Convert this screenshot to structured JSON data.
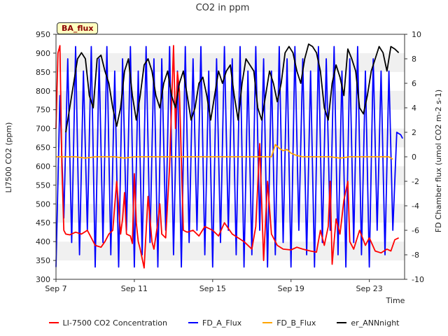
{
  "chart_data": {
    "type": "line",
    "title": "CO2 in ppm",
    "badge": "BA_flux",
    "xlabel": "Time",
    "ylabel_left": "LI7500 CO2 (ppm)",
    "ylabel_right": "FD Chamber flux (umol CO2 m-2 s-1)",
    "x_range": [
      0,
      17.8
    ],
    "x_unit": "days since Sep 7",
    "x_ticks": [
      {
        "day": 0,
        "label": "Sep 7"
      },
      {
        "day": 4,
        "label": "Sep 11"
      },
      {
        "day": 8,
        "label": "Sep 15"
      },
      {
        "day": 12,
        "label": "Sep 19"
      },
      {
        "day": 16,
        "label": "Sep 23"
      }
    ],
    "ylim_left": [
      300,
      950
    ],
    "yticks_left": [
      300,
      350,
      400,
      450,
      500,
      550,
      600,
      650,
      700,
      750,
      800,
      850,
      900,
      950
    ],
    "ylim_right": [
      -10,
      10
    ],
    "yticks_right": [
      -10,
      -8,
      -6,
      -4,
      -2,
      0,
      2,
      4,
      6,
      8,
      10
    ],
    "grid_bands": true,
    "legend_position": "bottom",
    "series": [
      {
        "name": "LI-7500 CO2 Concentration",
        "color": "#ff0000",
        "axis": "left",
        "x": [
          0.0,
          0.1,
          0.2,
          0.3,
          0.4,
          0.5,
          0.7,
          1.0,
          1.3,
          1.6,
          2.0,
          2.3,
          2.5,
          2.7,
          2.9,
          3.1,
          3.3,
          3.4,
          3.5,
          3.6,
          3.8,
          3.9,
          4.0,
          4.1,
          4.2,
          4.3,
          4.5,
          4.7,
          4.9,
          5.0,
          5.2,
          5.3,
          5.4,
          5.6,
          5.8,
          6.0,
          6.1,
          6.2,
          6.3,
          6.5,
          6.7,
          7.0,
          7.3,
          7.6,
          8.0,
          8.3,
          8.6,
          9.0,
          9.3,
          9.6,
          10.0,
          10.2,
          10.4,
          10.6,
          10.8,
          11.0,
          11.3,
          11.6,
          12.0,
          12.3,
          12.6,
          13.0,
          13.3,
          13.5,
          13.7,
          13.9,
          14.0,
          14.1,
          14.3,
          14.5,
          14.7,
          14.9,
          15.0,
          15.2,
          15.5,
          15.8,
          16.0,
          16.3,
          16.6,
          16.9,
          17.1,
          17.3,
          17.5
        ],
        "values": [
          700,
          900,
          920,
          600,
          430,
          420,
          418,
          425,
          420,
          430,
          390,
          385,
          400,
          420,
          430,
          560,
          420,
          460,
          530,
          420,
          415,
          395,
          580,
          450,
          400,
          380,
          330,
          520,
          400,
          380,
          450,
          500,
          420,
          410,
          600,
          920,
          700,
          850,
          800,
          430,
          425,
          430,
          415,
          440,
          430,
          415,
          450,
          420,
          410,
          400,
          380,
          440,
          660,
          350,
          560,
          420,
          390,
          380,
          378,
          385,
          380,
          375,
          372,
          430,
          390,
          440,
          560,
          340,
          460,
          420,
          510,
          560,
          400,
          380,
          430,
          390,
          410,
          375,
          370,
          380,
          375,
          405,
          410
        ]
      },
      {
        "name": "FD_A_Flux",
        "color": "#0000ff",
        "axis": "right",
        "x": [
          0.0,
          0.2,
          0.4,
          0.6,
          0.8,
          1.0,
          1.2,
          1.4,
          1.6,
          1.8,
          2.0,
          2.2,
          2.4,
          2.6,
          2.8,
          3.0,
          3.2,
          3.4,
          3.6,
          3.8,
          4.0,
          4.2,
          4.4,
          4.6,
          4.8,
          5.0,
          5.2,
          5.4,
          5.6,
          5.8,
          6.0,
          6.2,
          6.4,
          6.6,
          6.8,
          7.0,
          7.2,
          7.4,
          7.6,
          7.8,
          8.0,
          8.2,
          8.4,
          8.6,
          8.8,
          9.0,
          9.2,
          9.4,
          9.6,
          9.8,
          10.0,
          10.2,
          10.4,
          10.6,
          10.8,
          11.0,
          11.2,
          11.4,
          11.6,
          11.8,
          12.0,
          12.2,
          12.4,
          12.6,
          12.8,
          13.0,
          13.2,
          13.4,
          13.6,
          13.8,
          14.0,
          14.2,
          14.4,
          14.6,
          14.8,
          15.0,
          15.2,
          15.4,
          15.6,
          15.8,
          16.0,
          16.2,
          16.4,
          16.6,
          16.8,
          17.0,
          17.2,
          17.4,
          17.6,
          17.7
        ],
        "values": [
          -9,
          5,
          -5,
          8,
          -7,
          9,
          -8,
          7,
          -6,
          9,
          -9,
          8,
          -7,
          9,
          -8,
          7,
          -9,
          8,
          -6,
          9,
          -9,
          7,
          -8,
          9,
          -7,
          8,
          -9,
          8,
          -6,
          9,
          -8,
          7,
          -9,
          9,
          -7,
          8,
          -6,
          9,
          -8,
          7,
          -9,
          8,
          -7,
          9,
          -6,
          8,
          -8,
          9,
          -9,
          7,
          -8,
          9,
          -6,
          8,
          -9,
          7,
          -8,
          9,
          -7,
          8,
          -9,
          9,
          -6,
          8,
          -8,
          7,
          -9,
          9,
          -7,
          8,
          -6,
          9,
          -8,
          7,
          -9,
          8,
          -7,
          9,
          -8,
          7,
          -9,
          8,
          -6,
          7,
          -8,
          7,
          -6,
          2,
          1.8,
          1.5
        ]
      },
      {
        "name": "FD_B_Flux",
        "color": "#ffa500",
        "axis": "right",
        "x": [
          0.0,
          0.5,
          1.0,
          1.5,
          2.0,
          2.5,
          3.0,
          3.5,
          4.0,
          4.5,
          5.0,
          5.5,
          6.0,
          6.5,
          7.0,
          7.5,
          8.0,
          8.5,
          9.0,
          9.5,
          10.0,
          10.5,
          11.0,
          11.2,
          11.4,
          11.6,
          11.8,
          12.0,
          12.3,
          12.6,
          13.0,
          13.5,
          14.0,
          14.5,
          15.0,
          15.5,
          16.0,
          16.5,
          17.0,
          17.2
        ],
        "values": [
          0.0,
          0.0,
          0.0,
          -0.1,
          0.0,
          0.0,
          0.0,
          -0.1,
          0.0,
          0.0,
          0.0,
          0.0,
          0.0,
          0.0,
          0.0,
          0.0,
          0.0,
          0.0,
          0.0,
          0.0,
          0.0,
          0.0,
          0.0,
          1.0,
          0.7,
          0.5,
          0.6,
          0.3,
          0.1,
          0.0,
          0.0,
          0.0,
          0.0,
          -0.1,
          0.0,
          0.0,
          0.0,
          0.0,
          0.0,
          -0.2
        ]
      },
      {
        "name": "er_ANNnight",
        "color": "#000000",
        "axis": "right",
        "x": [
          0.5,
          0.7,
          0.9,
          1.1,
          1.3,
          1.5,
          1.7,
          1.9,
          2.1,
          2.3,
          2.5,
          2.7,
          2.9,
          3.1,
          3.3,
          3.5,
          3.7,
          3.9,
          4.1,
          4.3,
          4.5,
          4.7,
          4.9,
          5.1,
          5.3,
          5.5,
          5.7,
          5.9,
          6.1,
          6.3,
          6.5,
          6.7,
          6.9,
          7.1,
          7.3,
          7.5,
          7.7,
          7.9,
          8.1,
          8.3,
          8.5,
          8.7,
          8.9,
          9.1,
          9.3,
          9.5,
          9.7,
          9.9,
          10.1,
          10.3,
          10.5,
          10.7,
          10.9,
          11.1,
          11.3,
          11.5,
          11.7,
          11.9,
          12.1,
          12.3,
          12.5,
          12.7,
          12.9,
          13.1,
          13.3,
          13.5,
          13.7,
          13.9,
          14.1,
          14.3,
          14.5,
          14.7,
          14.9,
          15.1,
          15.3,
          15.5,
          15.7,
          15.9,
          16.1,
          16.3,
          16.5,
          16.7,
          16.9,
          17.1,
          17.3,
          17.5
        ],
        "values": [
          2,
          4,
          6,
          8,
          8.5,
          8,
          5,
          4,
          8,
          8.3,
          7,
          6,
          4,
          2.5,
          4,
          7,
          8,
          5,
          3,
          5,
          7.5,
          8,
          7,
          5,
          4,
          6,
          7,
          5,
          4,
          6,
          7,
          5,
          3,
          4,
          6,
          6.5,
          5,
          3,
          5,
          7,
          6,
          7,
          7.5,
          5,
          3,
          6,
          8,
          7.5,
          7,
          4,
          3,
          5,
          7,
          6,
          4.5,
          6,
          8.5,
          9,
          8.5,
          7,
          6,
          8,
          9.2,
          9,
          8.5,
          7,
          4,
          3,
          6,
          7.5,
          6.5,
          5,
          8.8,
          8,
          7,
          4,
          3.5,
          5,
          7,
          8,
          9,
          8.5,
          7,
          9,
          8.8,
          8.5
        ]
      }
    ]
  }
}
